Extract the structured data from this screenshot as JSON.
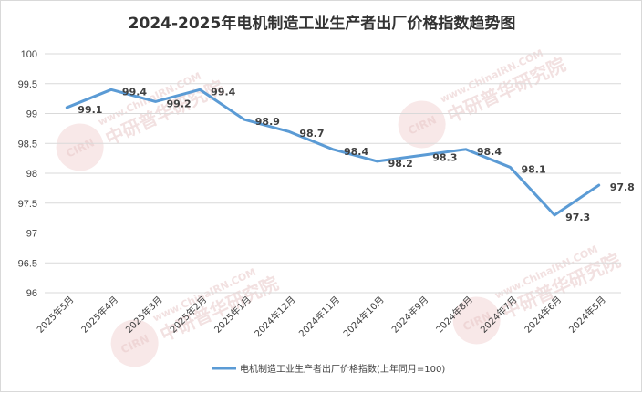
{
  "chart_data": {
    "type": "line",
    "title": "2024-2025年电机制造工业生产者出厂价格指数趋势图",
    "categories": [
      "2025年5月",
      "2025年4月",
      "2025年3月",
      "2025年2月",
      "2025年1月",
      "2024年12月",
      "2024年11月",
      "2024年10月",
      "2024年9月",
      "2024年8月",
      "2024年7月",
      "2024年6月",
      "2024年5月"
    ],
    "series": [
      {
        "name": "电机制造工业生产者出厂价格指数(上年同月=100)",
        "values": [
          99.1,
          99.4,
          99.2,
          99.4,
          98.9,
          98.7,
          98.4,
          98.2,
          98.3,
          98.4,
          98.1,
          97.3,
          97.8
        ],
        "color": "#5b9bd5"
      }
    ],
    "ylim": [
      96,
      100
    ],
    "yticks": [
      "96",
      "96.5",
      "97",
      "97.5",
      "98",
      "98.5",
      "99",
      "99.5",
      "100"
    ],
    "data_labels": [
      "99.1",
      "99.4",
      "99.2",
      "99.4",
      "98.9",
      "98.7",
      "98.4",
      "98.2",
      "98.3",
      "98.4",
      "98.1",
      "97.3",
      "97.8"
    ],
    "grid": true,
    "legend_position": "bottom"
  },
  "watermark": {
    "logo_text": "CIRN",
    "cn_text": "中研普华研究院",
    "en_text": "www.ChinaIRN.COM"
  }
}
